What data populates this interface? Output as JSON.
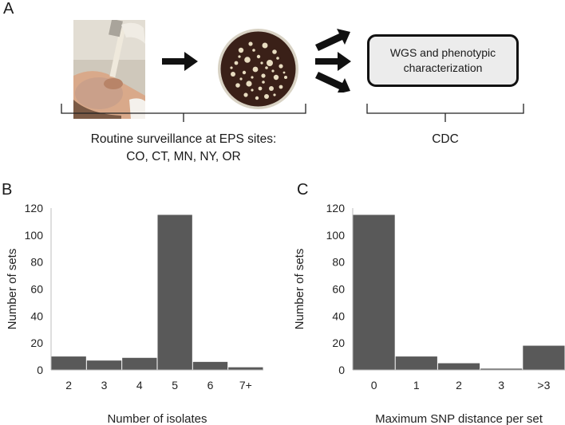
{
  "panel_a": {
    "letter": "A",
    "photo_icon": "nasal-swab-photo",
    "plate_icon": "bacterial-culture-plate",
    "process_box": {
      "line1": "WGS and phenotypic",
      "line2": "characterization"
    },
    "left_caption": {
      "line1": "Routine surveillance at EPS sites:",
      "line2": "CO, CT, MN, NY, OR"
    },
    "right_caption": "CDC"
  },
  "chart_data": [
    {
      "type": "bar",
      "panel": "B",
      "categories": [
        "2",
        "3",
        "4",
        "5",
        "6",
        "7+"
      ],
      "values": [
        10,
        7,
        9,
        115,
        6,
        2
      ],
      "xlabel": "Number of isolates",
      "ylabel": "Number of sets",
      "ylim": [
        0,
        120
      ],
      "yticks": [
        0,
        20,
        40,
        60,
        80,
        100,
        120
      ],
      "bar_color": "#595959",
      "grid": false
    },
    {
      "type": "bar",
      "panel": "C",
      "categories": [
        "0",
        "1",
        "2",
        "3",
        ">3"
      ],
      "values": [
        115,
        10,
        5,
        1,
        18
      ],
      "xlabel": "Maximum SNP distance per set",
      "ylabel": "Number of sets",
      "ylim": [
        0,
        120
      ],
      "yticks": [
        0,
        20,
        40,
        60,
        80,
        100,
        120
      ],
      "bar_color": "#595959",
      "grid": false
    }
  ]
}
